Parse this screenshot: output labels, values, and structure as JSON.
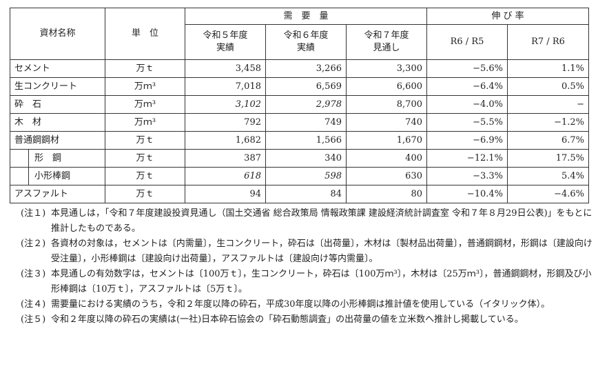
{
  "header": {
    "material": "資材名称",
    "unit": "単　位",
    "demand": "需　要　量",
    "growth": "伸 び 率",
    "cols": [
      "令和５年度\n実績",
      "令和６年度\n実績",
      "令和７年度\n見通し"
    ],
    "ratios": [
      "R6 / R5",
      "R7 / R6"
    ]
  },
  "rows": [
    {
      "name": "セメント",
      "unit": "万ｔ",
      "r5": "3,458",
      "r6": "3,266",
      "r7": "3,300",
      "g1": "−5.6%",
      "g2": "1.1%"
    },
    {
      "name": "生コンクリート",
      "unit": "万ｍ³",
      "r5": "7,018",
      "r6": "6,569",
      "r7": "6,600",
      "g1": "−6.4%",
      "g2": "0.5%"
    },
    {
      "name": "砕　石",
      "unit": "万ｍ³",
      "r5": "3,102",
      "r6": "2,978",
      "r7": "8,700",
      "g1": "−4.0%",
      "g2": "−",
      "italic": true
    },
    {
      "name": "木　材",
      "unit": "万ｍ³",
      "r5": "792",
      "r6": "749",
      "r7": "740",
      "g1": "−5.5%",
      "g2": "−1.2%"
    },
    {
      "name": "普通鋼鋼材",
      "unit": "万ｔ",
      "r5": "1,682",
      "r6": "1,566",
      "r7": "1,670",
      "g1": "−6.9%",
      "g2": "6.7%"
    },
    {
      "name": "形　鋼",
      "unit": "万ｔ",
      "r5": "387",
      "r6": "340",
      "r7": "400",
      "g1": "−12.1%",
      "g2": "17.5%"
    },
    {
      "name": "小形棒鋼",
      "unit": "万ｔ",
      "r5": "618",
      "r6": "598",
      "r7": "630",
      "g1": "−3.3%",
      "g2": "5.4%",
      "italic": true
    },
    {
      "name": "アスファルト",
      "unit": "万ｔ",
      "r5": "94",
      "r6": "84",
      "r7": "80",
      "g1": "−10.4%",
      "g2": "−4.6%"
    }
  ],
  "notes": [
    {
      "tag": "(注１)",
      "text": "本見通しは，「令和７年度建設投資見通し（国土交通省 総合政策局 情報政策課 建設経済統計調査室 令和７年８月29日公表)」をもとに推計したものである。"
    },
    {
      "tag": "(注２)",
      "text": "各資材の対象は，セメントは〔内需量〕，生コンクリート，砕石は〔出荷量〕，木材は〔製材品出荷量〕，普通鋼鋼材，形鋼は〔建設向け受注量〕，小形棒鋼は〔建設向け出荷量〕，アスファルトは〔建設向け等内需量〕。"
    },
    {
      "tag": "(注３)",
      "text": "本見通しの有効数字は，セメントは〔100万ｔ〕，生コンクリート，砕石は〔100万ｍ³〕，木材は〔25万ｍ³〕，普通鋼鋼材，形鋼及び小形棒鋼は〔10万ｔ〕，アスファルトは〔5万ｔ〕。"
    },
    {
      "tag": "(注４)",
      "text": "需要量における実績のうち，令和２年度以降の砕石，平成30年度以降の小形棒鋼は推計値を使用している（イタリック体）。"
    },
    {
      "tag": "(注５)",
      "text": "令和２年度以降の砕石の実績は(一社)日本砕石協会の「砕石動態調査」の出荷量の値を立米数へ推計し掲載している。"
    }
  ]
}
